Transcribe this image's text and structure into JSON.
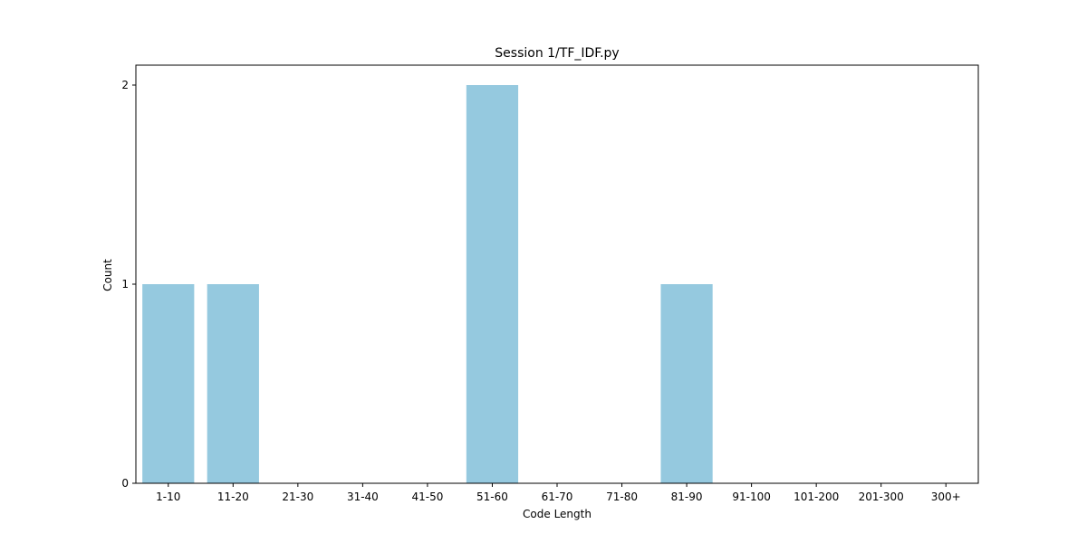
{
  "chart_data": {
    "type": "bar",
    "title": "Session 1/TF_IDF.py",
    "xlabel": "Code Length",
    "ylabel": "Count",
    "categories": [
      "1-10",
      "11-20",
      "21-30",
      "31-40",
      "41-50",
      "51-60",
      "61-70",
      "71-80",
      "81-90",
      "91-100",
      "101-200",
      "201-300",
      "300+"
    ],
    "values": [
      1,
      1,
      0,
      0,
      0,
      2,
      0,
      0,
      1,
      0,
      0,
      0,
      0
    ],
    "ylim": [
      0,
      2.1
    ],
    "yticks": [
      0,
      1,
      2
    ],
    "bar_color": "#95c9df",
    "grid": false,
    "legend": "none"
  }
}
